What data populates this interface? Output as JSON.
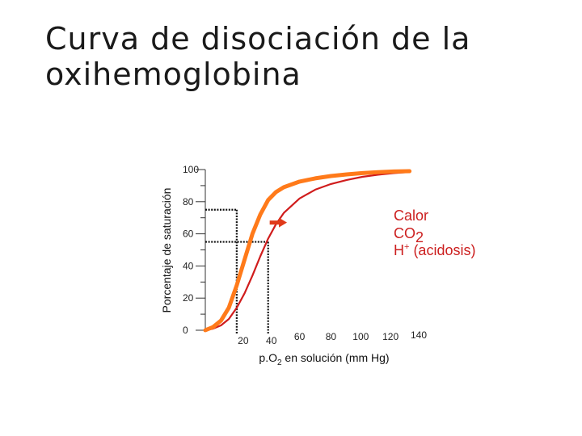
{
  "title": {
    "line1": "Curva de disociación de la",
    "line2": "oxihemoglobina"
  },
  "colors": {
    "normal_curve": "#ff7a1a",
    "shifted_curve": "#d01c1c",
    "annotation": "#cc1f1f",
    "arrow": "#e03a1a",
    "axis": "#333333"
  },
  "chart_data": {
    "type": "line",
    "ylabel": "Porcentaje de saturación",
    "xlabel_parts": [
      "p.O",
      "2",
      " en solución (mm Hg)"
    ],
    "xlim": [
      0,
      140
    ],
    "ylim": [
      0,
      100
    ],
    "y_ticks": [
      "0",
      "20",
      "40",
      "60",
      "80",
      "100"
    ],
    "x_ticks": [
      "20",
      "40",
      "60",
      "80",
      "100",
      "120",
      "140"
    ],
    "series": [
      {
        "color": "#ff7a1a",
        "x": [
          0,
          5,
          10,
          15,
          20,
          25,
          30,
          35,
          40,
          45,
          50,
          60,
          70,
          80,
          90,
          100,
          110,
          120,
          130
        ],
        "y": [
          0,
          2,
          6,
          14,
          28,
          44,
          60,
          72,
          81,
          86,
          89,
          92.5,
          94.5,
          96,
          97,
          97.8,
          98.4,
          98.8,
          99
        ]
      },
      {
        "color": "#d01c1c",
        "x": [
          0,
          5,
          10,
          15,
          20,
          25,
          30,
          35,
          40,
          45,
          50,
          60,
          70,
          80,
          90,
          100,
          110,
          120,
          130
        ],
        "y": [
          0,
          1,
          3,
          7,
          14,
          23,
          34,
          46,
          57,
          66,
          73,
          82,
          87.5,
          91,
          93.5,
          95.5,
          96.8,
          97.8,
          98.5
        ]
      }
    ],
    "reference_lines": [
      {
        "x": 20,
        "y": 75
      },
      {
        "x": 40,
        "y": 55
      }
    ],
    "arrow": {
      "from": [
        41,
        67
      ],
      "to": [
        52,
        67
      ]
    },
    "annotation": {
      "line1": "Calor",
      "line2_main": "CO",
      "line2_sub": "2",
      "line3_main": "H",
      "line3_sup": "+",
      "line3_rest": " (acidosis)"
    }
  }
}
